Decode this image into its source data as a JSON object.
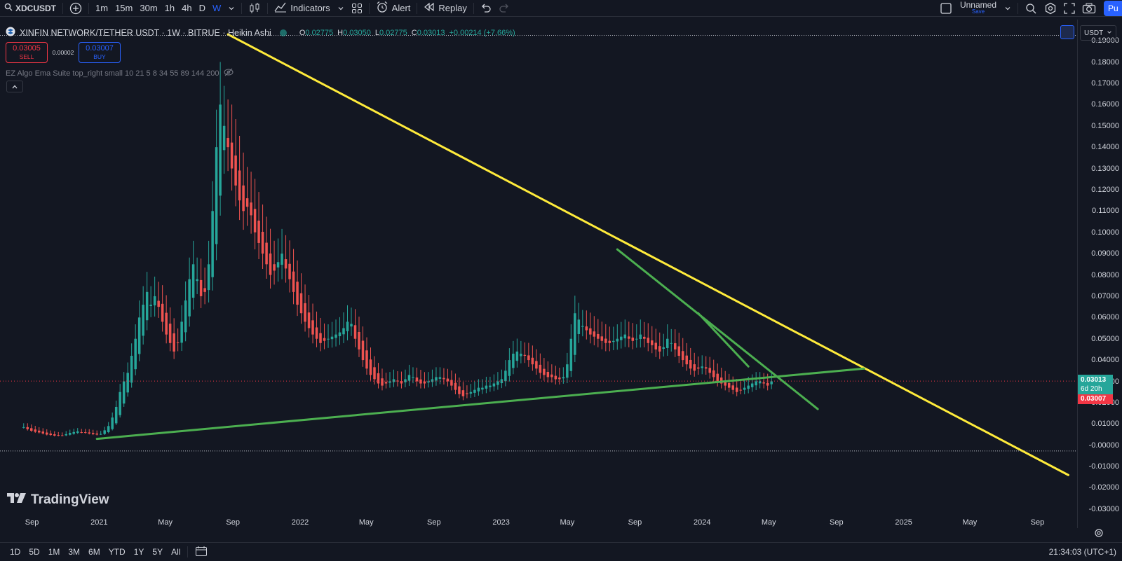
{
  "toolbar": {
    "symbol": "XDCUSDT",
    "intervals": [
      "1m",
      "15m",
      "30m",
      "1h",
      "4h",
      "D",
      "W"
    ],
    "active_interval": "W",
    "indicators_label": "Indicators",
    "alert_label": "Alert",
    "replay_label": "Replay",
    "layout_name": "Unnamed",
    "layout_save": "Save",
    "publish_label": "Pu"
  },
  "legend": {
    "title": "XINFIN NETWORK/TETHER USDT · 1W · BITRUE · Heikin Ashi",
    "o_label": "O",
    "o": "0.02775",
    "h_label": "H",
    "h": "0.03050",
    "l_label": "L",
    "l": "0.02775",
    "c_label": "C",
    "c": "0.03013",
    "change": "+0.00214 (+7.66%)"
  },
  "trade": {
    "sell_price": "0.03005",
    "sell_label": "SELL",
    "spread": "0.00002",
    "buy_price": "0.03007",
    "buy_label": "BUY"
  },
  "indicator_text": "EZ Algo Ema Suite top_right small 10 21 5 8 34 55 89 144 200",
  "currency": "USDT",
  "price_labels": {
    "last": "0.03013",
    "countdown": "6d 20h",
    "buy": "0.03007"
  },
  "brand": "TradingView",
  "ranges": [
    "1D",
    "5D",
    "1M",
    "3M",
    "6M",
    "YTD",
    "1Y",
    "5Y",
    "All"
  ],
  "clock": "21:34:03 (UTC+1)",
  "colors": {
    "up": "#26a69a",
    "down": "#ef5350",
    "trend_yellow": "#ffeb3b",
    "trend_green": "#4caf50",
    "accent": "#2962ff"
  },
  "chart_data": {
    "type": "candlestick",
    "chart_style": "Heikin Ashi",
    "y_ticks": [
      "0.19000",
      "0.18000",
      "0.17000",
      "0.16000",
      "0.15000",
      "0.14000",
      "0.13000",
      "0.12000",
      "0.11000",
      "0.10000",
      "0.09000",
      "0.08000",
      "0.07000",
      "0.06000",
      "0.05000",
      "0.04000",
      "0.03000",
      "0.02000",
      "0.01000",
      "-0.00000",
      "-0.01000",
      "-0.02000",
      "-0.03000"
    ],
    "ylim": [
      -0.033,
      0.194
    ],
    "x_ticks": [
      "Sep",
      "2021",
      "May",
      "Sep",
      "2022",
      "May",
      "Sep",
      "2023",
      "May",
      "Sep",
      "2024",
      "May",
      "Sep",
      "2025",
      "May",
      "Sep"
    ],
    "x_tick_values": [
      "2020-09-01",
      "2021-01-01",
      "2021-05-01",
      "2021-09-01",
      "2022-01-01",
      "2022-05-01",
      "2022-09-01",
      "2023-01-01",
      "2023-05-01",
      "2023-09-01",
      "2024-01-01",
      "2024-05-01",
      "2024-09-01",
      "2025-01-01",
      "2025-05-01",
      "2025-09-01"
    ],
    "xlim": [
      "2020-07-05",
      "2025-11-12"
    ],
    "close_series_weekly": {
      "start": "2020-08-17",
      "values": [
        0.0085,
        0.0075,
        0.0068,
        0.0063,
        0.006,
        0.0055,
        0.005,
        0.0048,
        0.0045,
        0.0045,
        0.0046,
        0.0052,
        0.0058,
        0.0062,
        0.0065,
        0.0061,
        0.0059,
        0.0055,
        0.0052,
        0.005,
        0.0053,
        0.007,
        0.009,
        0.013,
        0.018,
        0.025,
        0.03,
        0.034,
        0.042,
        0.05,
        0.06,
        0.066,
        0.072,
        0.066,
        0.07,
        0.065,
        0.058,
        0.052,
        0.048,
        0.044,
        0.048,
        0.058,
        0.068,
        0.078,
        0.085,
        0.078,
        0.07,
        0.072,
        0.085,
        0.11,
        0.14,
        0.16,
        0.15,
        0.14,
        0.13,
        0.122,
        0.115,
        0.11,
        0.112,
        0.108,
        0.1,
        0.095,
        0.09,
        0.085,
        0.08,
        0.082,
        0.086,
        0.09,
        0.083,
        0.078,
        0.072,
        0.066,
        0.062,
        0.058,
        0.055,
        0.052,
        0.05,
        0.048,
        0.049,
        0.05,
        0.051,
        0.052,
        0.053,
        0.055,
        0.058,
        0.057,
        0.05,
        0.045,
        0.04,
        0.036,
        0.033,
        0.031,
        0.029,
        0.028,
        0.029,
        0.03,
        0.031,
        0.03,
        0.029,
        0.031,
        0.033,
        0.032,
        0.03,
        0.029,
        0.029,
        0.03,
        0.031,
        0.032,
        0.032,
        0.031,
        0.03,
        0.028,
        0.026,
        0.024,
        0.023,
        0.024,
        0.025,
        0.026,
        0.027,
        0.027,
        0.028,
        0.028,
        0.029,
        0.03,
        0.031,
        0.035,
        0.04,
        0.043,
        0.044,
        0.043,
        0.042,
        0.04,
        0.038,
        0.036,
        0.034,
        0.033,
        0.032,
        0.032,
        0.031,
        0.031,
        0.032,
        0.038,
        0.05,
        0.062,
        0.059,
        0.056,
        0.054,
        0.052,
        0.051,
        0.05,
        0.049,
        0.048,
        0.048,
        0.049,
        0.05,
        0.051,
        0.052,
        0.05,
        0.049,
        0.05,
        0.052,
        0.05,
        0.048,
        0.047,
        0.045,
        0.044,
        0.046,
        0.05,
        0.048,
        0.045,
        0.042,
        0.04,
        0.038,
        0.036,
        0.035,
        0.036,
        0.037,
        0.036,
        0.034,
        0.032,
        0.03,
        0.029,
        0.028,
        0.027,
        0.026,
        0.025,
        0.026,
        0.027,
        0.028,
        0.029,
        0.03,
        0.03,
        0.029,
        0.028,
        0.03
      ]
    },
    "drawings": [
      {
        "type": "trendline",
        "color": "yellow",
        "from": {
          "date": "2021-08-23",
          "price": 0.193
        },
        "to": {
          "date": "2025-10-27",
          "price": -0.014
        }
      },
      {
        "type": "trendline",
        "color": "green",
        "from": {
          "date": "2020-12-28",
          "price": 0.003
        },
        "to": {
          "date": "2024-10-21",
          "price": 0.036
        }
      },
      {
        "type": "trendline",
        "color": "green",
        "from": {
          "date": "2023-07-31",
          "price": 0.092
        },
        "to": {
          "date": "2024-07-29",
          "price": 0.017
        }
      },
      {
        "type": "trendline",
        "color": "green",
        "from": {
          "date": "2023-12-25",
          "price": 0.062
        },
        "to": {
          "date": "2024-03-25",
          "price": 0.037
        }
      }
    ],
    "horizontal_lines": [
      {
        "price": 0.1925,
        "style": "dotted",
        "color": "white"
      },
      {
        "price": -0.0027,
        "style": "dotted",
        "color": "white"
      },
      {
        "price": 0.03013,
        "style": "dotted",
        "color": "red"
      }
    ]
  }
}
